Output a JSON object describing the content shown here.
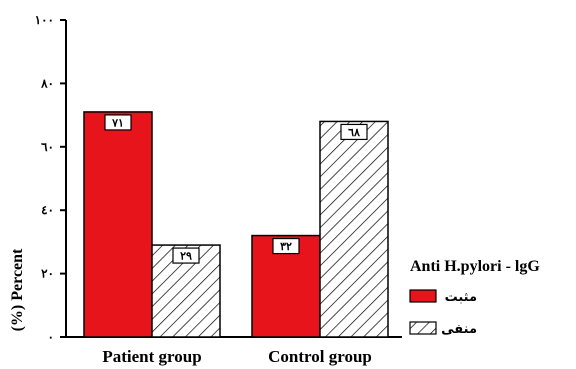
{
  "chart_data": {
    "type": "bar",
    "categories": [
      "Patient group",
      "Control group"
    ],
    "series": [
      {
        "name": "مثبت",
        "values": [
          71,
          32
        ],
        "labels": [
          "٧١",
          "٣٢"
        ],
        "fill": "#e8141b",
        "pattern": "solid"
      },
      {
        "name": "منفی",
        "values": [
          29,
          68
        ],
        "labels": [
          "٢٩",
          "٦٨"
        ],
        "fill": "#ffffff",
        "pattern": "hatch"
      }
    ],
    "ylim": [
      0,
      100
    ],
    "yticks": [
      0,
      20,
      40,
      60,
      80,
      100
    ],
    "ytick_labels": [
      "٠",
      "٢٠",
      "٤٠",
      "٦٠",
      "٨٠",
      "١٠٠"
    ],
    "ylabel": "(%) Percent",
    "xlabel": "",
    "legend_title": "Anti H.pylori - lgG",
    "legend_position": "right",
    "grid": false
  }
}
